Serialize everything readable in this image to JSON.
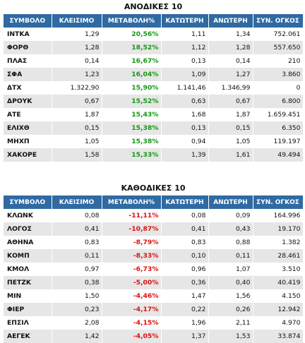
{
  "gainers": {
    "title": "ΑΝΟΔΙΚΕΣ 10",
    "headers": [
      "ΣΥΜΒΟΛΟ",
      "ΚΛΕΙΣΙΜΟ",
      "ΜΕΤΑΒΟΛΗ%",
      "ΚΑΤΩΤΕΡΗ",
      "ΑΝΩΤΕΡΗ",
      "ΣΥΝ. ΟΓΚΟΣ"
    ],
    "rows": [
      [
        "ΙΝΤΚΑ",
        "1,29",
        "20,56%",
        "1,11",
        "1,34",
        "752.061"
      ],
      [
        "ΦΟΡΘ",
        "1,28",
        "18,52%",
        "1,12",
        "1,28",
        "557.650"
      ],
      [
        "ΠΛΑΣ",
        "0,14",
        "16,67%",
        "0,13",
        "0,14",
        "210"
      ],
      [
        "ΣΦΑ",
        "1,23",
        "16,04%",
        "1,09",
        "1,27",
        "3.860"
      ],
      [
        "ΔΤΧ",
        "1.322,90",
        "15,90%",
        "1.141,46",
        "1.346,99",
        "0"
      ],
      [
        "ΔΡΟΥΚ",
        "0,67",
        "15,52%",
        "0,63",
        "0,67",
        "6.800"
      ],
      [
        "ΑΤΕ",
        "1,87",
        "15,43%",
        "1,68",
        "1,87",
        "1.659.451"
      ],
      [
        "ΕΛΙΧΘ",
        "0,15",
        "15,38%",
        "0,13",
        "0,15",
        "6.350"
      ],
      [
        "ΜΗΧΠ",
        "1,05",
        "15,38%",
        "0,94",
        "1,05",
        "119.197"
      ],
      [
        "ΧΑΚΟΡΕ",
        "1,58",
        "15,33%",
        "1,39",
        "1,61",
        "49.494"
      ]
    ]
  },
  "losers": {
    "title": "ΚΑΘΟΔΙΚΕΣ 10",
    "headers": [
      "ΣΥΜΒΟΛΟ",
      "ΚΛΕΙΣΙΜΟ",
      "ΜΕΤΑΒΟΛΗ%",
      "ΚΑΤΩΤΕΡΗ",
      "ΑΝΩΤΕΡΗ",
      "ΣΥΝ. ΟΓΚΟΣ"
    ],
    "rows": [
      [
        "ΚΛΩΝΚ",
        "0,08",
        "-11,11%",
        "0,08",
        "0,09",
        "164.996"
      ],
      [
        "ΛΟΓΟΣ",
        "0,41",
        "-10,87%",
        "0,41",
        "0,43",
        "19.170"
      ],
      [
        "ΑΘΗΝΑ",
        "0,83",
        "-8,79%",
        "0,83",
        "0,88",
        "1.382"
      ],
      [
        "ΚΟΜΠ",
        "0,11",
        "-8,33%",
        "0,10",
        "0,11",
        "28.461"
      ],
      [
        "ΚΜΟΛ",
        "0,97",
        "-6,73%",
        "0,96",
        "1,07",
        "3.510"
      ],
      [
        "ΠΕΤΖΚ",
        "0,38",
        "-5,00%",
        "0,36",
        "0,40",
        "40.419"
      ],
      [
        "ΜΙΝ",
        "1,50",
        "-4,46%",
        "1,47",
        "1,56",
        "4.150"
      ],
      [
        "ΦΙΕΡ",
        "0,23",
        "-4,17%",
        "0,22",
        "0,26",
        "12.942"
      ],
      [
        "ΕΠΣΙΛ",
        "2,08",
        "-4,15%",
        "1,96",
        "2,11",
        "4.970"
      ],
      [
        "ΑΕΓΕΚ",
        "1,42",
        "-4,05%",
        "1,37",
        "1,53",
        "33.874"
      ]
    ]
  },
  "colors": {
    "header_bg": "#2f6aa3",
    "row_alt_bg": "#e6e6e6",
    "positive_change": "#119911",
    "negative_change": "#dd1111"
  }
}
